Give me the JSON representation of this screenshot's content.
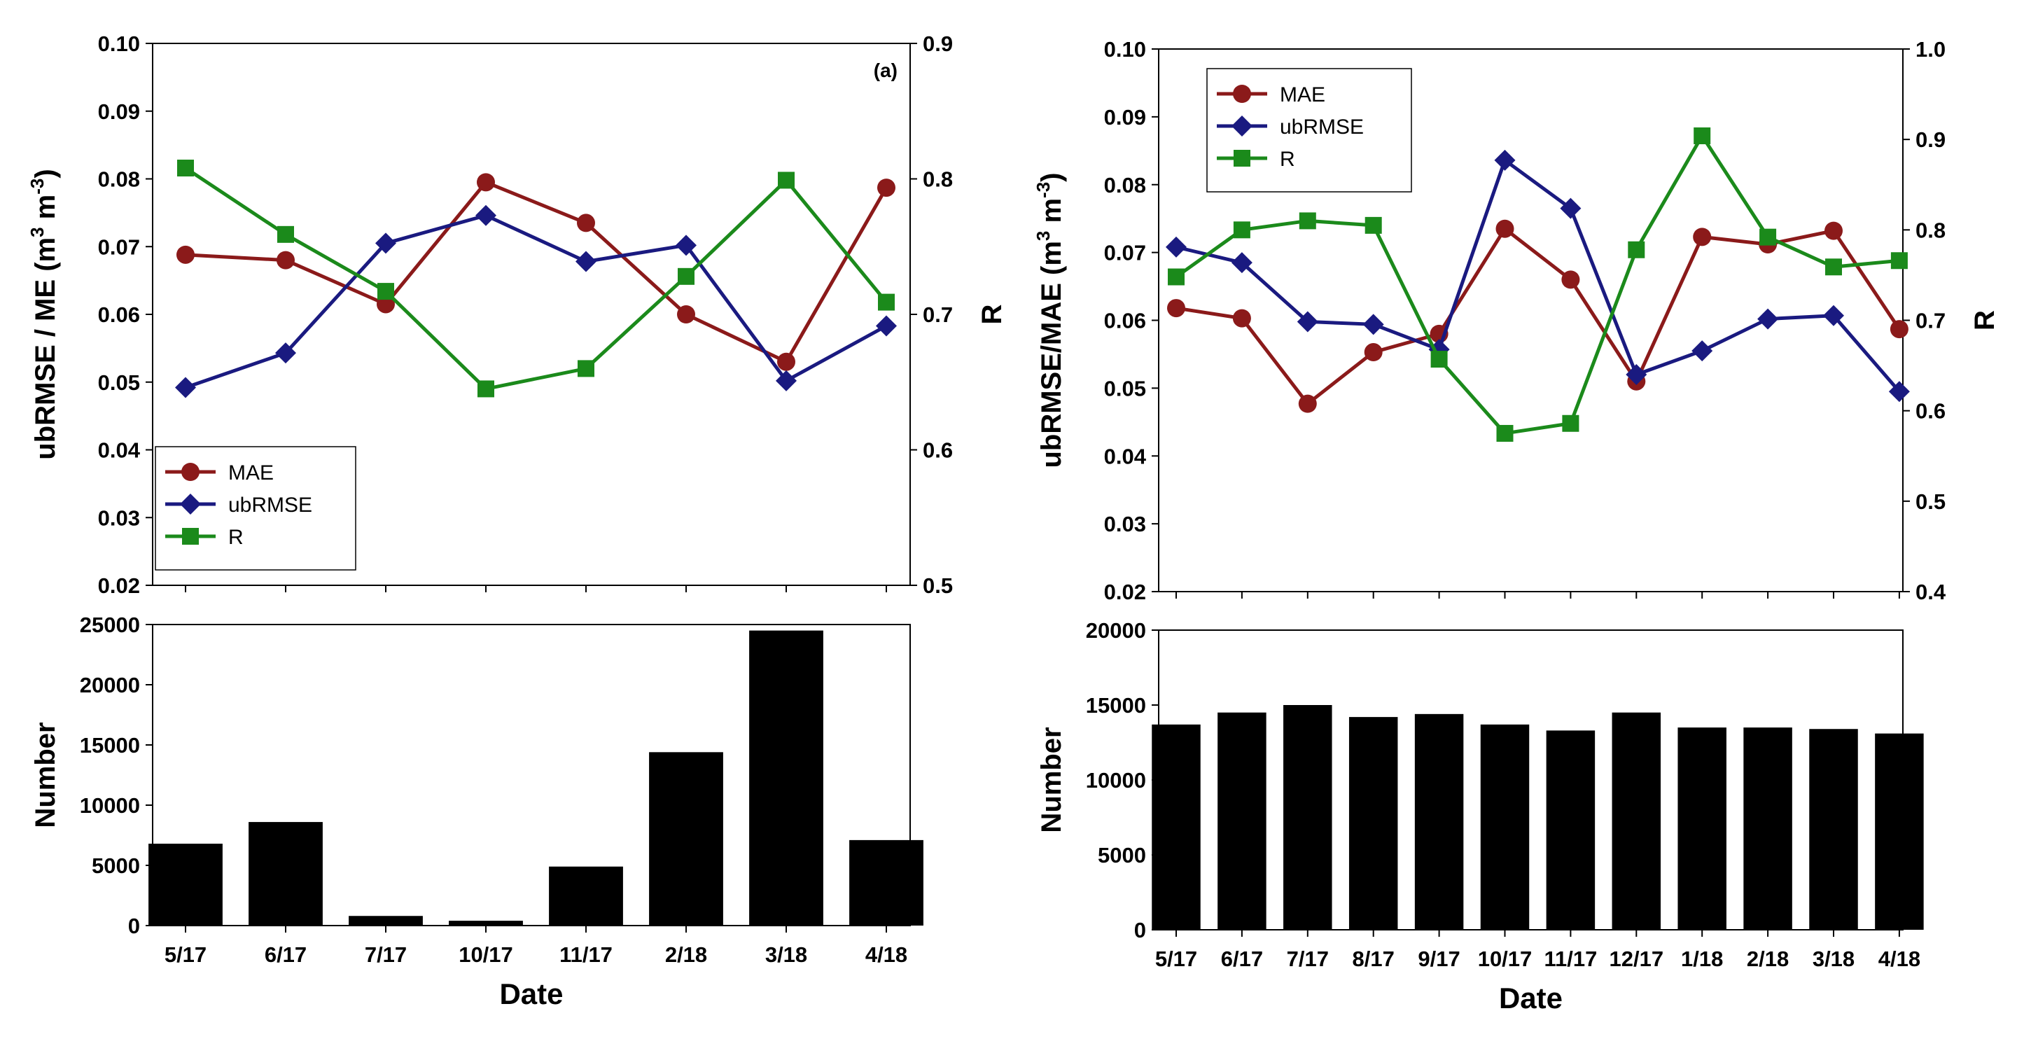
{
  "chart_data": [
    {
      "type": "line",
      "panel": "left",
      "annotation": "(a)",
      "categories": [
        "5/17",
        "6/17",
        "7/17",
        "10/17",
        "11/17",
        "2/18",
        "3/18",
        "4/18"
      ],
      "ylabel_left": "ubRMSE / ME (m³ m⁻³)",
      "ylabel_left_parts": {
        "a": "ubRMSE / ME (m",
        "b": "3",
        "c": " m",
        "d": "-3",
        "e": ")"
      },
      "ylabel_right": "R",
      "ylim_left": [
        0.02,
        0.1
      ],
      "ylim_right": [
        0.5,
        0.9
      ],
      "yticks_left": [
        "0.02",
        "0.03",
        "0.04",
        "0.05",
        "0.06",
        "0.07",
        "0.08",
        "0.09",
        "0.10"
      ],
      "yticks_right": [
        "0.5",
        "0.6",
        "0.7",
        "0.8",
        "0.9"
      ],
      "legend_position": "bottom-left",
      "series": [
        {
          "name": "MAE",
          "axis": "left",
          "color": "#8b1a1a",
          "marker": "circle",
          "values": [
            0.0688,
            0.068,
            0.0615,
            0.0795,
            0.0735,
            0.06,
            0.053,
            0.0787
          ]
        },
        {
          "name": "ubRMSE",
          "axis": "left",
          "color": "#1a1a80",
          "marker": "diamond",
          "values": [
            0.0492,
            0.0543,
            0.0705,
            0.0746,
            0.0678,
            0.0702,
            0.0502,
            0.0583
          ]
        },
        {
          "name": "R",
          "axis": "right",
          "color": "#1b8a1b",
          "marker": "square",
          "values": [
            0.808,
            0.759,
            0.717,
            0.645,
            0.66,
            0.728,
            0.799,
            0.709
          ]
        }
      ]
    },
    {
      "type": "bar",
      "panel": "left-bottom",
      "categories": [
        "5/17",
        "6/17",
        "7/17",
        "10/17",
        "11/17",
        "2/18",
        "3/18",
        "4/18"
      ],
      "values": [
        6800,
        8600,
        800,
        400,
        4900,
        14400,
        24500,
        7100
      ],
      "ylabel": "Number",
      "xlabel": "Date",
      "ylim": [
        0,
        25000
      ],
      "yticks": [
        "0",
        "5000",
        "10000",
        "15000",
        "20000",
        "25000"
      ],
      "color": "#000000"
    },
    {
      "type": "line",
      "panel": "right",
      "categories": [
        "5/17",
        "6/17",
        "7/17",
        "8/17",
        "9/17",
        "10/17",
        "11/17",
        "12/17",
        "1/18",
        "2/18",
        "3/18",
        "4/18"
      ],
      "ylabel_left": "ubRMSE/MAE (m³ m⁻³)",
      "ylabel_left_parts": {
        "a": "ubRMSE/MAE (m",
        "b": "3",
        "c": " m",
        "d": "-3",
        "e": ")"
      },
      "ylabel_right": "R",
      "ylim_left": [
        0.02,
        0.1
      ],
      "ylim_right": [
        0.4,
        1.0
      ],
      "yticks_left": [
        "0.02",
        "0.03",
        "0.04",
        "0.05",
        "0.06",
        "0.07",
        "0.08",
        "0.09",
        "0.10"
      ],
      "yticks_right": [
        "0.4",
        "0.5",
        "0.6",
        "0.7",
        "0.8",
        "0.9",
        "1.0"
      ],
      "legend_position": "top-left",
      "series": [
        {
          "name": "MAE",
          "axis": "left",
          "color": "#8b1a1a",
          "marker": "circle",
          "values": [
            0.0618,
            0.0603,
            0.0477,
            0.0553,
            0.058,
            0.0735,
            0.066,
            0.051,
            0.0723,
            0.0712,
            0.0732,
            0.0587
          ]
        },
        {
          "name": "ubRMSE",
          "axis": "left",
          "color": "#1a1a80",
          "marker": "diamond",
          "values": [
            0.0708,
            0.0685,
            0.0598,
            0.0594,
            0.0557,
            0.0836,
            0.0765,
            0.052,
            0.0555,
            0.0602,
            0.0607,
            0.0495
          ]
        },
        {
          "name": "R",
          "axis": "right",
          "color": "#1b8a1b",
          "marker": "square",
          "values": [
            0.748,
            0.8,
            0.81,
            0.805,
            0.657,
            0.575,
            0.586,
            0.778,
            0.904,
            0.792,
            0.759,
            0.766
          ]
        }
      ]
    },
    {
      "type": "bar",
      "panel": "right-bottom",
      "categories": [
        "5/17",
        "6/17",
        "7/17",
        "8/17",
        "9/17",
        "10/17",
        "11/17",
        "12/17",
        "1/18",
        "2/18",
        "3/18",
        "4/18"
      ],
      "values": [
        13700,
        14500,
        15000,
        14200,
        14400,
        13700,
        13300,
        14500,
        13500,
        13500,
        13400,
        13100
      ],
      "ylabel": "Number",
      "xlabel": "Date",
      "ylim": [
        0,
        20000
      ],
      "yticks": [
        "0",
        "5000",
        "10000",
        "15000",
        "20000"
      ],
      "color": "#000000"
    }
  ]
}
